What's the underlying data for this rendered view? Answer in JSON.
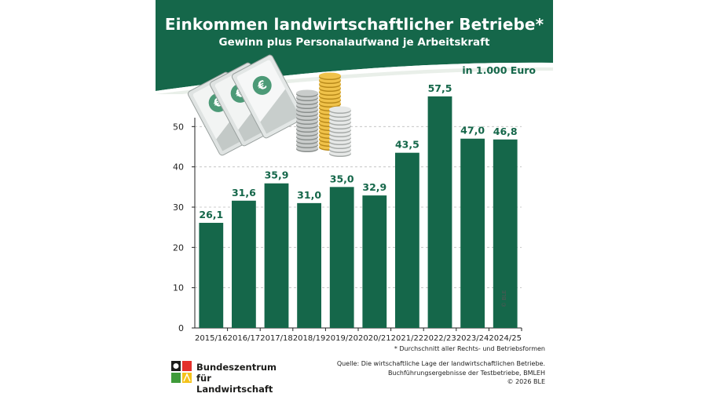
{
  "header": {
    "title": "Einkommen landwirtschaftlicher Betriebe*",
    "subtitle": "Gewinn plus Personalaufwand je Arbeitskraft",
    "unit": "in 1.000 Euro"
  },
  "colors": {
    "brand_green": "#15674a",
    "bar_green": "#15674a",
    "grid": "#bdbdbd"
  },
  "chart_data": {
    "type": "bar",
    "categories": [
      "2015/16",
      "2016/17",
      "2017/18",
      "2018/19",
      "2019/20",
      "2020/21",
      "2021/22",
      "2022/23",
      "2023/24",
      "2024/25"
    ],
    "values": [
      26.1,
      31.6,
      35.9,
      31.0,
      35.0,
      32.9,
      43.5,
      57.5,
      47.0,
      46.8
    ],
    "value_labels": [
      "26,1",
      "31,6",
      "35,9",
      "31,0",
      "35,0",
      "32,9",
      "43,5",
      "57,5",
      "47,0",
      "46,8"
    ],
    "yticks": [
      0,
      10,
      20,
      30,
      40,
      50
    ],
    "ylim": [
      0,
      60
    ],
    "grid": true,
    "title": "Einkommen landwirtschaftlicher Betriebe*",
    "subtitle": "Gewinn plus Personalaufwand je Arbeitskraft",
    "ylabel": "in 1.000 Euro",
    "xlabel": ""
  },
  "credit": "© BLE",
  "footnote": "* Durchschnitt aller Rechts- und Betriebsformen",
  "source": {
    "line1": "Quelle: Die wirtschaftliche Lage der landwirtschaftlichen Betriebe.",
    "line2": "Buchführungsergebnisse der Testbetriebe, BMLEH",
    "line3": "© 2026 BLE"
  },
  "logo": {
    "line1": "Bundeszentrum",
    "line2": "für Landwirtschaft"
  },
  "illustration": {
    "icon": "euro-money-illustration",
    "note_symbol": "€"
  }
}
